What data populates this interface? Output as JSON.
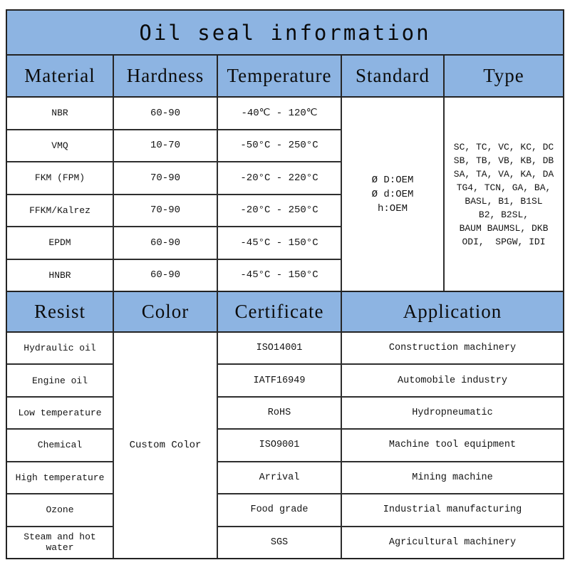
{
  "title": "Oil seal information",
  "colors": {
    "header_bg": "#8db4e2",
    "grid_line": "#2e2e2e",
    "text": "#141414"
  },
  "top_table": {
    "headers": [
      "Material",
      "Hardness",
      "Temperature",
      "Standard",
      "Type"
    ],
    "rows": [
      {
        "material": "NBR",
        "hardness": "60-90",
        "temperature": "-40℃ - 120℃"
      },
      {
        "material": "VMQ",
        "hardness": "10-70",
        "temperature": "-50°C - 250°C"
      },
      {
        "material": "FKM (FPM)",
        "hardness": "70-90",
        "temperature": "-20°C - 220°C"
      },
      {
        "material": "FFKM/Kalrez",
        "hardness": "70-90",
        "temperature": "-20°C - 250°C"
      },
      {
        "material": "EPDM",
        "hardness": "60-90",
        "temperature": "-45°C - 150°C"
      },
      {
        "material": "HNBR",
        "hardness": "60-90",
        "temperature": "-45°C - 150°C"
      }
    ],
    "standard_lines": [
      "Ø D:OEM",
      "Ø d:OEM",
      "h:OEM"
    ],
    "type_lines": [
      "SC, TC, VC, KC, DC",
      "SB, TB, VB, KB, DB",
      "SA, TA, VA, KA, DA",
      "TG4, TCN, GA, BA,",
      "BASL, B1, B1SL",
      "B2, B2SL,",
      "BAUM BAUMSL, DKB",
      "ODI,  SPGW, IDI"
    ]
  },
  "bottom_table": {
    "headers": [
      "Resist",
      "Color",
      "Certificate",
      "Application"
    ],
    "color_value": "Custom Color",
    "rows": [
      {
        "resist": "Hydraulic oil",
        "certificate": "ISO14001",
        "application": "Construction machinery"
      },
      {
        "resist": "Engine oil",
        "certificate": "IATF16949",
        "application": "Automobile industry"
      },
      {
        "resist": "Low temperature",
        "certificate": "RoHS",
        "application": "Hydropneumatic"
      },
      {
        "resist": "Chemical",
        "certificate": "ISO9001",
        "application": "Machine tool equipment"
      },
      {
        "resist": "High temperature",
        "certificate": "Arrival",
        "application": "Mining machine"
      },
      {
        "resist": "Ozone",
        "certificate": "Food grade",
        "application": "Industrial manufacturing"
      },
      {
        "resist": "Steam and hot water",
        "certificate": "SGS",
        "application": "Agricultural machinery"
      }
    ]
  }
}
